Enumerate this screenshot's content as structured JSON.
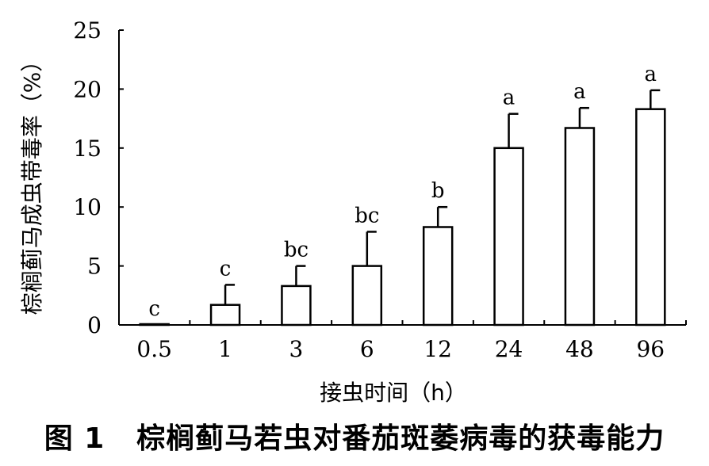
{
  "chart_data": {
    "type": "bar",
    "categories": [
      "0.5",
      "1",
      "3",
      "6",
      "12",
      "24",
      "48",
      "96"
    ],
    "values": [
      0,
      1.7,
      3.3,
      5.0,
      8.3,
      15.0,
      16.7,
      18.3
    ],
    "errors": [
      0,
      1.7,
      1.7,
      2.9,
      1.7,
      2.9,
      1.7,
      1.6
    ],
    "significance": [
      "c",
      "c",
      "bc",
      "bc",
      "b",
      "a",
      "a",
      "a"
    ],
    "ylabel": "棕榈蓟马成虫带毒率（%）",
    "xlabel": "接虫时间（h）",
    "yticks": [
      0,
      5,
      10,
      15,
      20,
      25
    ],
    "ylim": [
      0,
      25
    ],
    "grid": false,
    "bar_fill": "#ffffff",
    "stroke_color": "#000000"
  },
  "caption": {
    "label": "图 1",
    "text": "棕榈蓟马若虫对番茄斑萎病毒的获毒能力"
  }
}
